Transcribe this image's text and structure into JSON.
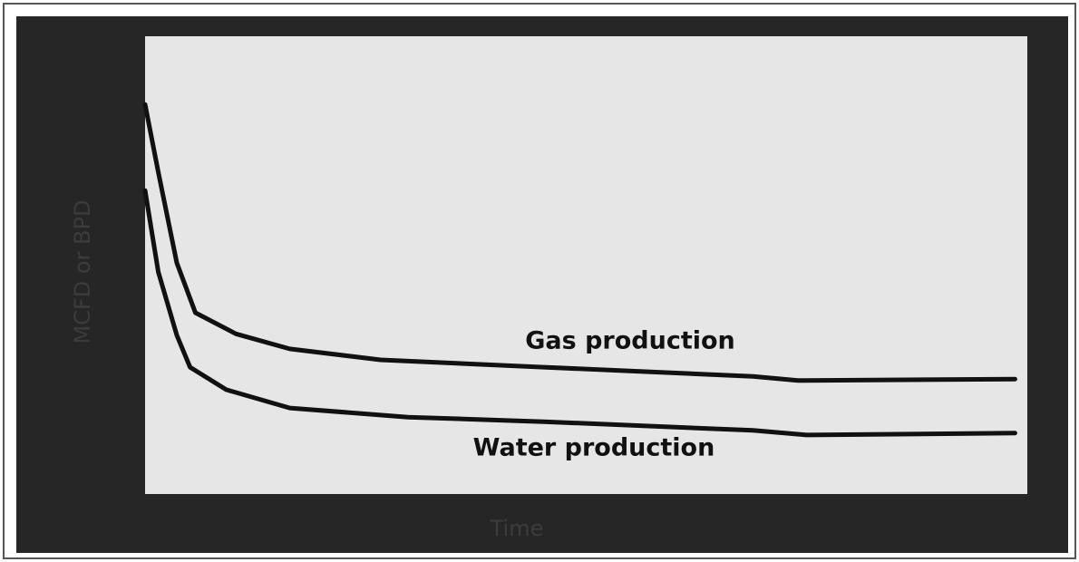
{
  "chart_data": {
    "type": "line",
    "ylabel": "MCFD or BPD",
    "xlabel": "Time",
    "xlim": [
      0,
      100
    ],
    "ylim": [
      0,
      100
    ],
    "series": [
      {
        "name": "Gas production",
        "color": "#111111",
        "x": [
          0,
          1.5,
          3.6,
          5.7,
          10.3,
          16.4,
          26.7,
          45.2,
          68.9,
          74,
          98.6
        ],
        "values": [
          85.1,
          70.3,
          50.5,
          39.6,
          35.0,
          31.7,
          29.3,
          27.7,
          25.7,
          24.8,
          25.1
        ]
      },
      {
        "name": "Water production",
        "color": "#111111",
        "x": [
          0,
          1.5,
          3.6,
          5.1,
          9.2,
          16.4,
          29.8,
          45.2,
          68.9,
          75,
          98.6
        ],
        "values": [
          66.3,
          48.5,
          34.7,
          27.7,
          22.8,
          18.8,
          16.8,
          15.8,
          13.9,
          12.9,
          13.3
        ]
      }
    ]
  }
}
